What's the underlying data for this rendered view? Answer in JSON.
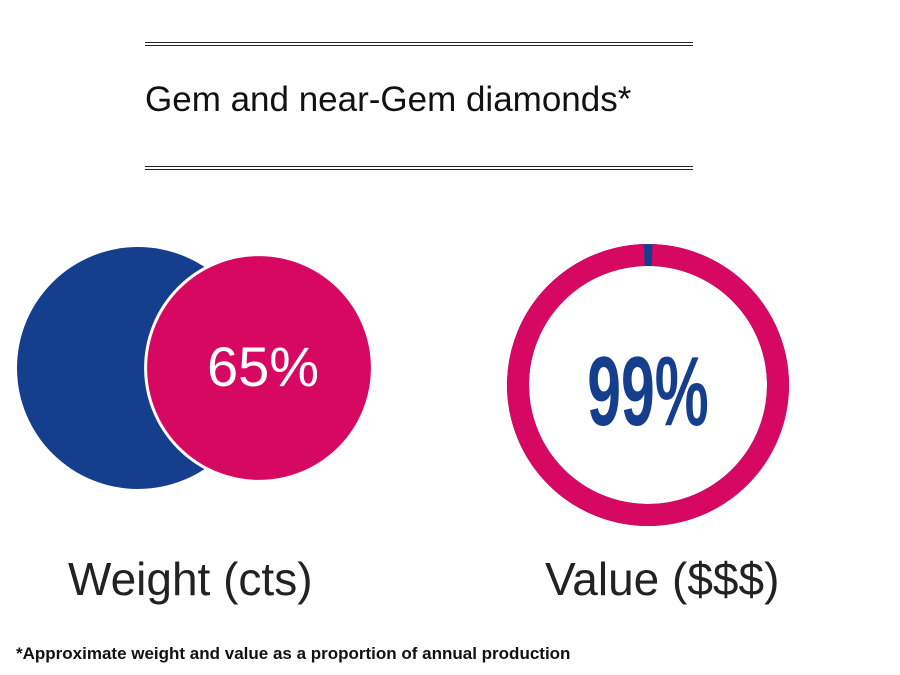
{
  "title": "Gem and near-Gem diamonds*",
  "footnote": "*Approximate weight and value as a proportion of annual production",
  "colors": {
    "navy": "#153f8c",
    "magenta": "#d60862",
    "white": "#ffffff"
  },
  "chart_data": [
    {
      "type": "pie",
      "label": "Weight (cts)",
      "values": [
        65
      ],
      "value_text": "65%"
    },
    {
      "type": "pie",
      "label": "Value ($$$)",
      "values": [
        99
      ],
      "value_text": "99%"
    }
  ]
}
